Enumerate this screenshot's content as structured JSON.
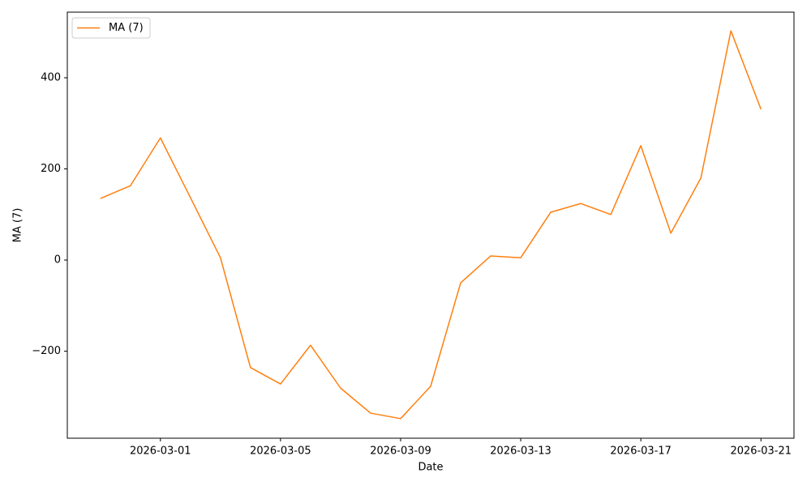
{
  "chart_data": {
    "type": "line",
    "xlabel": "Date",
    "ylabel": "MA (7)",
    "x": [
      "2026-02-27",
      "2026-02-28",
      "2026-03-01",
      "2026-03-02",
      "2026-03-03",
      "2026-03-04",
      "2026-03-05",
      "2026-03-06",
      "2026-03-07",
      "2026-03-08",
      "2026-03-09",
      "2026-03-10",
      "2026-03-11",
      "2026-03-12",
      "2026-03-13",
      "2026-03-14",
      "2026-03-15",
      "2026-03-16",
      "2026-03-17",
      "2026-03-18",
      "2026-03-19",
      "2026-03-20",
      "2026-03-21"
    ],
    "series": [
      {
        "name": "MA (7)",
        "color": "#ff7f0e",
        "values": [
          135,
          163,
          268,
          137,
          5,
          -236,
          -272,
          -187,
          -281,
          -336,
          -348,
          -277,
          -50,
          9,
          5,
          105,
          124,
          100,
          251,
          59,
          180,
          503,
          331
        ]
      }
    ],
    "xlim": [
      "2026-02-25T21:36",
      "2026-03-22T02:24"
    ],
    "xticks": [
      "2026-03-01",
      "2026-03-05",
      "2026-03-09",
      "2026-03-13",
      "2026-03-17",
      "2026-03-21"
    ],
    "ylim": [
      -391,
      544
    ],
    "yticks": [
      {
        "value": -200,
        "label": "−200"
      },
      0,
      200,
      400
    ],
    "legend": "upper left",
    "grid": false
  }
}
